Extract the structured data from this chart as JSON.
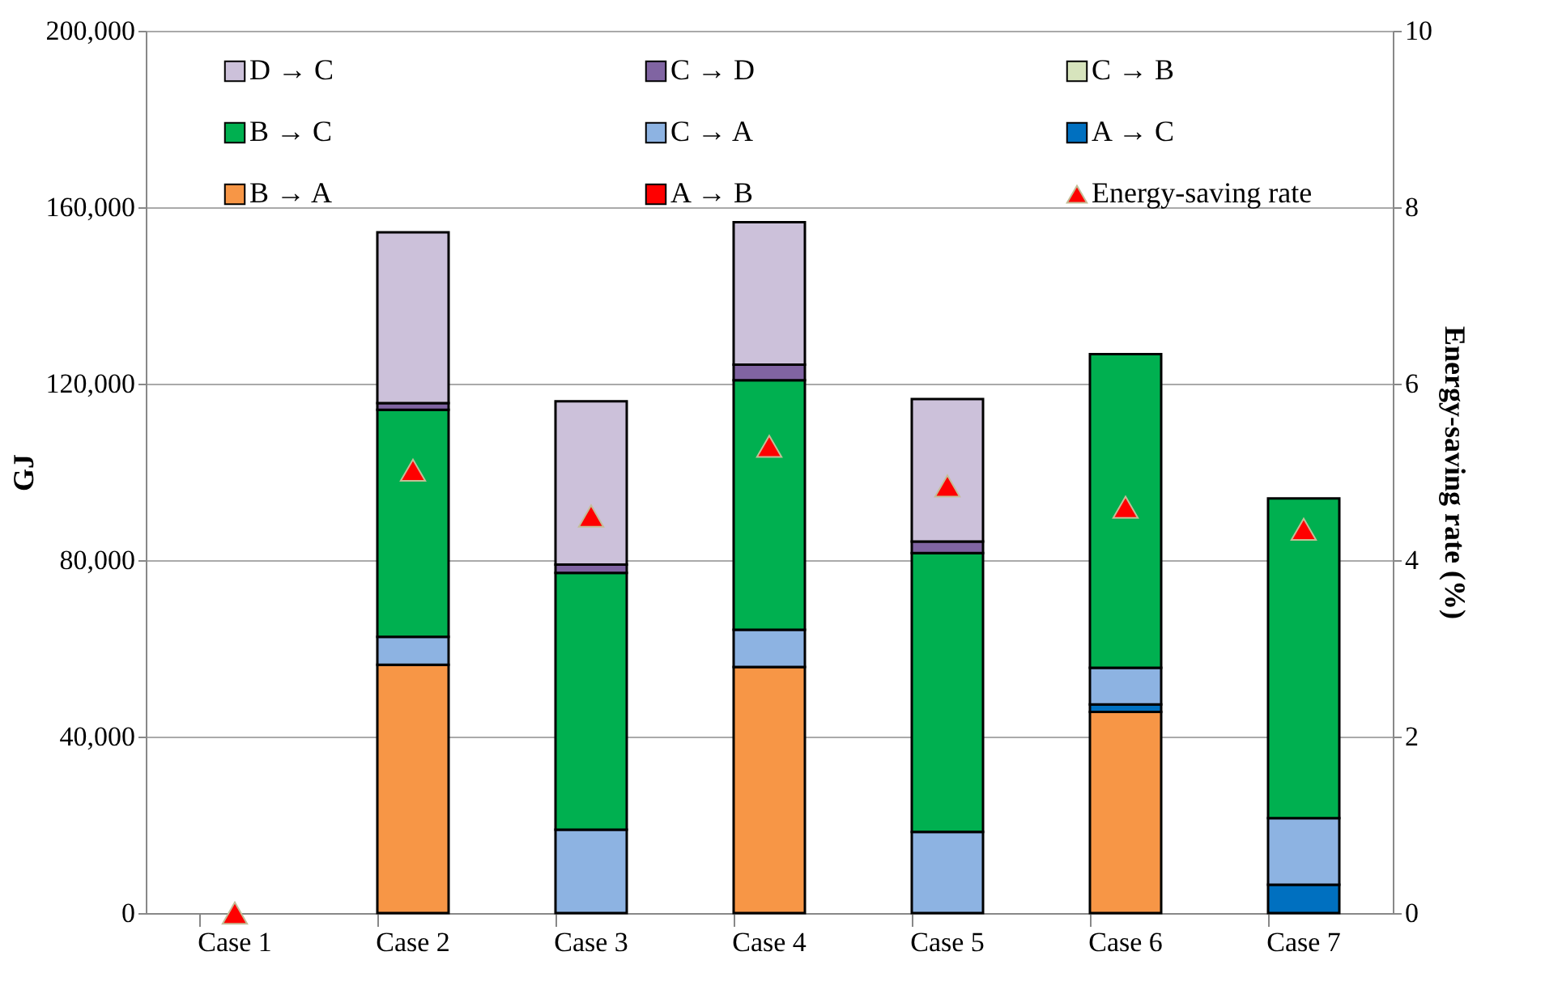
{
  "chart_data": {
    "type": "bar",
    "stacked": true,
    "ylabel": "GJ",
    "y2label": "Energy-saving rate (%)",
    "categories": [
      "Case 1",
      "Case 2",
      "Case 3",
      "Case 4",
      "Case 5",
      "Case 6",
      "Case 7"
    ],
    "ylim": [
      0,
      200000
    ],
    "yticks": [
      {
        "value": 0,
        "label": "0"
      },
      {
        "value": 40000,
        "label": "40,000"
      },
      {
        "value": 80000,
        "label": "80,000"
      },
      {
        "value": 120000,
        "label": "120,000"
      },
      {
        "value": 160000,
        "label": "160,000"
      },
      {
        "value": 200000,
        "label": "200,000"
      }
    ],
    "y2lim": [
      0,
      10
    ],
    "y2ticks": [
      0,
      2,
      4,
      6,
      8,
      10
    ],
    "grid": "y",
    "legend": "top",
    "series": [
      {
        "name": "A → B",
        "color": "#ff0000",
        "values": [
          null,
          null,
          null,
          null,
          null,
          null,
          null
        ]
      },
      {
        "name": "B → A",
        "color": "#f79646",
        "values": [
          null,
          56300,
          null,
          55800,
          null,
          45600,
          null
        ]
      },
      {
        "name": "A → C",
        "color": "#0070c0",
        "values": [
          null,
          null,
          null,
          null,
          null,
          1700,
          6400
        ]
      },
      {
        "name": "C → A",
        "color": "#8db3e2",
        "values": [
          null,
          6300,
          18900,
          8400,
          18400,
          8300,
          15100
        ]
      },
      {
        "name": "B → C",
        "color": "#00b050",
        "values": [
          null,
          51500,
          58200,
          56600,
          63200,
          71100,
          72500
        ]
      },
      {
        "name": "C → B",
        "color": "#d7e4bd",
        "values": [
          null,
          null,
          null,
          null,
          null,
          null,
          null
        ]
      },
      {
        "name": "C → D",
        "color": "#8064a2",
        "values": [
          null,
          1500,
          1900,
          3500,
          2600,
          null,
          null
        ]
      },
      {
        "name": "D → C",
        "color": "#ccc1da",
        "values": [
          null,
          38700,
          37000,
          32300,
          32300,
          null,
          null
        ]
      },
      {
        "name": "Energy-saving rate",
        "type": "scatter",
        "axis": "y2",
        "marker": "triangle",
        "color": "#ff0000",
        "values": [
          0,
          5.02,
          4.5,
          5.29,
          4.84,
          4.6,
          4.35
        ]
      }
    ]
  }
}
